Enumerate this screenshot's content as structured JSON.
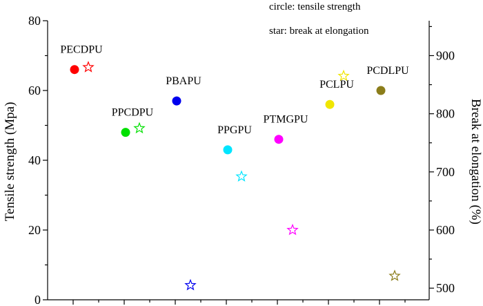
{
  "chart_data": {
    "type": "scatter",
    "title": "",
    "xlabel": "",
    "ylabel": "Tensile strength (Mpa)",
    "y2label": "Break at elongation (%)",
    "ylim": [
      0,
      80
    ],
    "y2lim": [
      480,
      960
    ],
    "yticks": [
      "0",
      "20",
      "40",
      "60",
      "80"
    ],
    "y2ticks": [
      "500",
      "600",
      "700",
      "800",
      "900"
    ],
    "legend": [
      "circle: tensile strength",
      "star: break at elongation"
    ],
    "legend_position": "top-right",
    "series": [
      {
        "name": "tensile strength",
        "marker": "circle",
        "values": [
          66,
          48,
          57,
          43,
          46,
          56,
          60
        ]
      },
      {
        "name": "break at elongation",
        "marker": "star",
        "values": [
          880,
          775,
          505,
          692,
          600,
          865,
          521
        ]
      }
    ],
    "categories": [
      "PECDPU",
      "PPCDPU",
      "PBAPU",
      "PPGPU",
      "PTMGPU",
      "PCLPU",
      "PCDLPU"
    ],
    "colors": [
      "#ff0000",
      "#00e000",
      "#0000ee",
      "#00e5ff",
      "#ff00ff",
      "#f0e600",
      "#8b7d1a"
    ]
  }
}
